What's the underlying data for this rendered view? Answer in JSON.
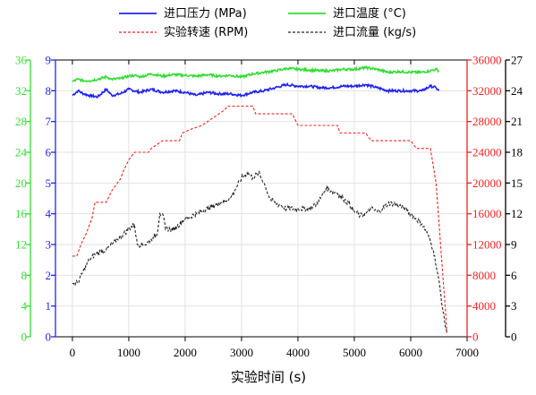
{
  "chart_data": {
    "type": "line",
    "xlabel": "实验时间 (s)",
    "x_ticks": [
      0,
      1000,
      2000,
      3000,
      4000,
      5000,
      6000,
      7000
    ],
    "x_range": [
      -300,
      7000
    ],
    "grid": true,
    "legend_placement": "top-center",
    "axes": {
      "left_outer": {
        "color": "#33dd33",
        "range": [
          0,
          36
        ],
        "ticks": [
          0,
          4,
          8,
          12,
          16,
          20,
          24,
          28,
          32,
          36
        ]
      },
      "left_inner": {
        "color": "#2222ee",
        "range": [
          0,
          9
        ],
        "ticks": [
          0,
          1,
          2,
          3,
          4,
          5,
          6,
          7,
          8,
          9
        ]
      },
      "right_inner": {
        "color": "#ee2222",
        "range": [
          0,
          36000
        ],
        "ticks": [
          0,
          4000,
          8000,
          12000,
          16000,
          20000,
          24000,
          28000,
          32000,
          36000
        ]
      },
      "right_outer": {
        "color": "#000000",
        "range": [
          0,
          27
        ],
        "ticks": [
          0,
          3,
          6,
          9,
          12,
          15,
          18,
          21,
          24,
          27
        ]
      }
    },
    "series": [
      {
        "name": "进口压力 (MPa)",
        "axis": "left_inner",
        "color": "#2222ee",
        "dash": "",
        "noise": 0.04,
        "points": [
          [
            0,
            7.85
          ],
          [
            100,
            8.0
          ],
          [
            200,
            7.9
          ],
          [
            300,
            7.85
          ],
          [
            450,
            7.8
          ],
          [
            600,
            8.05
          ],
          [
            700,
            7.85
          ],
          [
            850,
            7.9
          ],
          [
            1000,
            8.05
          ],
          [
            1200,
            7.95
          ],
          [
            1400,
            8.05
          ],
          [
            1600,
            7.95
          ],
          [
            1800,
            8.0
          ],
          [
            2000,
            7.95
          ],
          [
            2200,
            7.85
          ],
          [
            2400,
            7.95
          ],
          [
            2600,
            7.9
          ],
          [
            2800,
            7.9
          ],
          [
            3000,
            7.85
          ],
          [
            3200,
            7.95
          ],
          [
            3400,
            8.0
          ],
          [
            3600,
            8.1
          ],
          [
            3800,
            8.2
          ],
          [
            4000,
            8.15
          ],
          [
            4200,
            8.15
          ],
          [
            4400,
            8.1
          ],
          [
            4600,
            8.1
          ],
          [
            4800,
            8.15
          ],
          [
            5000,
            8.15
          ],
          [
            5200,
            8.2
          ],
          [
            5400,
            8.1
          ],
          [
            5600,
            8.0
          ],
          [
            5800,
            8.0
          ],
          [
            6000,
            8.0
          ],
          [
            6200,
            8.0
          ],
          [
            6350,
            8.15
          ],
          [
            6450,
            8.1
          ],
          [
            6500,
            8.0
          ]
        ]
      },
      {
        "name": "进口温度 (°C)",
        "axis": "left_outer",
        "color": "#33dd33",
        "dash": "",
        "noise": 0.15,
        "points": [
          [
            0,
            33.2
          ],
          [
            100,
            33.5
          ],
          [
            200,
            33.3
          ],
          [
            300,
            33.3
          ],
          [
            450,
            33.5
          ],
          [
            600,
            33.8
          ],
          [
            700,
            33.5
          ],
          [
            850,
            33.6
          ],
          [
            1000,
            33.9
          ],
          [
            1100,
            34.0
          ],
          [
            1200,
            33.8
          ],
          [
            1400,
            34.2
          ],
          [
            1600,
            33.9
          ],
          [
            1800,
            34.1
          ],
          [
            2000,
            34.0
          ],
          [
            2200,
            33.9
          ],
          [
            2400,
            34.1
          ],
          [
            2600,
            33.9
          ],
          [
            2800,
            34.0
          ],
          [
            3000,
            33.8
          ],
          [
            3200,
            34.2
          ],
          [
            3400,
            34.4
          ],
          [
            3600,
            34.6
          ],
          [
            3800,
            34.9
          ],
          [
            4000,
            34.8
          ],
          [
            4200,
            34.7
          ],
          [
            4400,
            34.6
          ],
          [
            4600,
            34.6
          ],
          [
            4800,
            34.8
          ],
          [
            5000,
            34.8
          ],
          [
            5200,
            35.0
          ],
          [
            5400,
            34.8
          ],
          [
            5600,
            34.4
          ],
          [
            5800,
            34.5
          ],
          [
            6000,
            34.4
          ],
          [
            6200,
            34.4
          ],
          [
            6350,
            34.6
          ],
          [
            6450,
            34.8
          ],
          [
            6500,
            34.6
          ]
        ]
      },
      {
        "name": "实验转速 (RPM)",
        "axis": "right_inner",
        "color": "#ee2222",
        "dash": "3,2",
        "noise": 0,
        "points": [
          [
            0,
            10500
          ],
          [
            80,
            10500
          ],
          [
            150,
            12000
          ],
          [
            250,
            13500
          ],
          [
            350,
            15500
          ],
          [
            400,
            17500
          ],
          [
            600,
            17500
          ],
          [
            700,
            19000
          ],
          [
            850,
            20500
          ],
          [
            900,
            21500
          ],
          [
            1000,
            23000
          ],
          [
            1100,
            24000
          ],
          [
            1350,
            24000
          ],
          [
            1400,
            24500
          ],
          [
            1500,
            25000
          ],
          [
            1600,
            25500
          ],
          [
            1900,
            25500
          ],
          [
            1950,
            26500
          ],
          [
            2100,
            27000
          ],
          [
            2300,
            27500
          ],
          [
            2500,
            28500
          ],
          [
            2600,
            29000
          ],
          [
            2700,
            29500
          ],
          [
            2750,
            30000
          ],
          [
            3200,
            30000
          ],
          [
            3250,
            29000
          ],
          [
            3900,
            29000
          ],
          [
            4000,
            27500
          ],
          [
            4700,
            27500
          ],
          [
            4750,
            26500
          ],
          [
            5200,
            26500
          ],
          [
            5300,
            25500
          ],
          [
            6000,
            25500
          ],
          [
            6100,
            24500
          ],
          [
            6350,
            24500
          ],
          [
            6450,
            20000
          ],
          [
            6500,
            15000
          ],
          [
            6550,
            10000
          ],
          [
            6580,
            7000
          ],
          [
            6620,
            3000
          ],
          [
            6640,
            500
          ]
        ]
      },
      {
        "name": "进口流量 (kg/s)",
        "axis": "right_outer",
        "color": "#222222",
        "dash": "3,2",
        "noise": 0.25,
        "points": [
          [
            0,
            5.2
          ],
          [
            100,
            5.3
          ],
          [
            200,
            6.5
          ],
          [
            300,
            7.5
          ],
          [
            400,
            8.0
          ],
          [
            500,
            8.3
          ],
          [
            600,
            8.5
          ],
          [
            700,
            9.0
          ],
          [
            800,
            9.5
          ],
          [
            900,
            10.0
          ],
          [
            1000,
            10.5
          ],
          [
            1100,
            11.0
          ],
          [
            1150,
            9.0
          ],
          [
            1300,
            9.0
          ],
          [
            1400,
            9.5
          ],
          [
            1500,
            10.0
          ],
          [
            1550,
            12.0
          ],
          [
            1600,
            12.0
          ],
          [
            1650,
            10.5
          ],
          [
            1800,
            10.5
          ],
          [
            2000,
            11.5
          ],
          [
            2200,
            12.0
          ],
          [
            2400,
            12.5
          ],
          [
            2600,
            13.0
          ],
          [
            2800,
            13.5
          ],
          [
            2900,
            14.5
          ],
          [
            3000,
            15.5
          ],
          [
            3100,
            16.0
          ],
          [
            3200,
            15.5
          ],
          [
            3300,
            16.0
          ],
          [
            3400,
            15.0
          ],
          [
            3500,
            13.5
          ],
          [
            3600,
            13.0
          ],
          [
            3700,
            12.8
          ],
          [
            3800,
            12.5
          ],
          [
            4000,
            12.5
          ],
          [
            4200,
            12.5
          ],
          [
            4300,
            12.8
          ],
          [
            4400,
            13.5
          ],
          [
            4500,
            14.5
          ],
          [
            4600,
            14.2
          ],
          [
            4700,
            14.0
          ],
          [
            4800,
            13.5
          ],
          [
            4900,
            13.0
          ],
          [
            5000,
            12.2
          ],
          [
            5100,
            11.8
          ],
          [
            5200,
            12.0
          ],
          [
            5300,
            12.5
          ],
          [
            5400,
            12.2
          ],
          [
            5500,
            12.5
          ],
          [
            5600,
            13.0
          ],
          [
            5700,
            13.0
          ],
          [
            5800,
            12.8
          ],
          [
            5900,
            12.5
          ],
          [
            6000,
            12.0
          ],
          [
            6100,
            11.5
          ],
          [
            6200,
            11.0
          ],
          [
            6300,
            10.0
          ],
          [
            6400,
            8.5
          ],
          [
            6450,
            7.0
          ],
          [
            6500,
            5.5
          ],
          [
            6560,
            3.0
          ],
          [
            6600,
            1.5
          ],
          [
            6640,
            0.5
          ]
        ]
      }
    ]
  }
}
